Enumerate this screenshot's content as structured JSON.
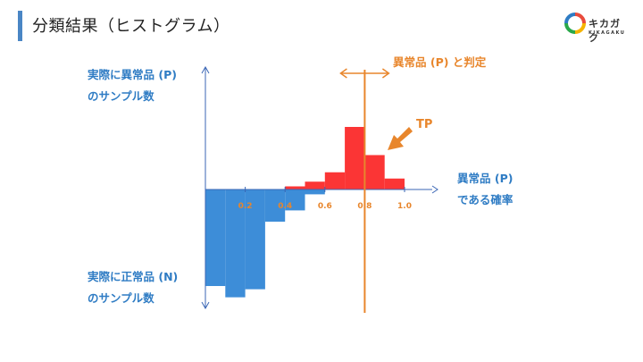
{
  "header": {
    "title": "分類結果（ヒストグラム）",
    "logo_text": "キカガク",
    "logo_sub": "KIKAGAKU"
  },
  "labels": {
    "pos_count_line1": "実際に異常品 (P)",
    "pos_count_line2": "のサンプル数",
    "neg_count_line1": "実際に正常品 (N)",
    "neg_count_line2": "のサンプル数",
    "x_line1": "異常品 (P)",
    "x_line2": "である確率",
    "threshold": "異常品 (P) と判定",
    "tp": "TP"
  },
  "colors": {
    "positive": "#fb3535",
    "negative": "#3d8dd8",
    "threshold": "#e8862c",
    "axis": "#3a66b5"
  },
  "chart_data": {
    "type": "bar",
    "title": "分類結果（ヒストグラム）",
    "xlabel": "異常品 (P) である確率",
    "xlim": [
      0,
      1.0
    ],
    "x_ticks": [
      "0.2",
      "0.4",
      "0.6",
      "0.8",
      "1.0"
    ],
    "threshold": 0.8,
    "series": [
      {
        "name": "実際に異常品 (P)",
        "direction": "up",
        "bins": [
          {
            "x0": 0.4,
            "x1": 0.5,
            "value": 2
          },
          {
            "x0": 0.5,
            "x1": 0.6,
            "value": 5
          },
          {
            "x0": 0.6,
            "x1": 0.7,
            "value": 11
          },
          {
            "x0": 0.7,
            "x1": 0.8,
            "value": 40
          },
          {
            "x0": 0.8,
            "x1": 0.9,
            "value": 22
          },
          {
            "x0": 0.9,
            "x1": 1.0,
            "value": 7
          }
        ]
      },
      {
        "name": "実際に正常品 (N)",
        "direction": "down",
        "bins": [
          {
            "x0": 0.0,
            "x1": 0.1,
            "value": 60
          },
          {
            "x0": 0.1,
            "x1": 0.2,
            "value": 67
          },
          {
            "x0": 0.2,
            "x1": 0.3,
            "value": 62
          },
          {
            "x0": 0.3,
            "x1": 0.4,
            "value": 20
          },
          {
            "x0": 0.4,
            "x1": 0.5,
            "value": 13
          },
          {
            "x0": 0.5,
            "x1": 0.6,
            "value": 3
          }
        ]
      }
    ]
  }
}
